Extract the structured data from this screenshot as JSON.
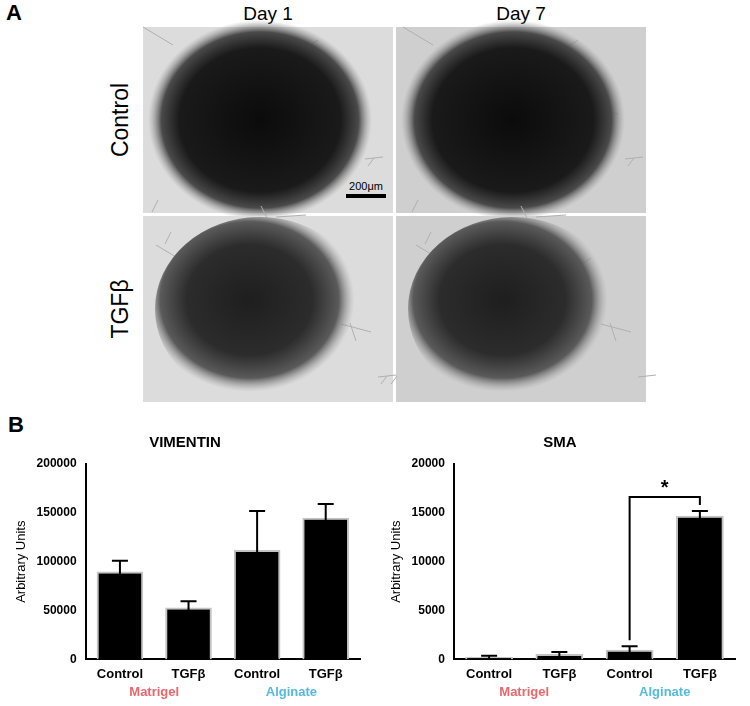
{
  "panel_a": {
    "label": "A",
    "columns": [
      "Day 1",
      "Day 7"
    ],
    "rows": [
      "Control",
      "TGFβ"
    ],
    "scale_bar": "200μm"
  },
  "panel_b_label": "B",
  "chart_data": [
    {
      "type": "bar",
      "title": "VIMENTIN",
      "y_label": "Arbitrary Units",
      "categories": [
        "Control",
        "TGFβ",
        "Control",
        "TGFβ"
      ],
      "values": [
        90000,
        53000,
        112000,
        145000
      ],
      "errors": [
        11000,
        6500,
        40000,
        14000
      ],
      "color": "#000000",
      "ylim": [
        0,
        200000
      ],
      "yticks": [
        0,
        50000,
        100000,
        150000,
        200000
      ],
      "grid": false,
      "groups": [
        {
          "name": "Matrigel",
          "color": "#e8676c",
          "count": 2
        },
        {
          "name": "Alginate",
          "color": "#56b9e0",
          "count": 2
        }
      ]
    },
    {
      "type": "bar",
      "title": "SMA",
      "y_label": "Arbitrary Units",
      "categories": [
        "Control",
        "TGFβ",
        "Control",
        "TGFβ"
      ],
      "values": [
        250,
        550,
        1000,
        14700
      ],
      "errors": [
        120,
        200,
        350,
        500
      ],
      "color": "#000000",
      "ylim": [
        0,
        20000
      ],
      "yticks": [
        0,
        5000,
        10000,
        15000,
        20000
      ],
      "grid": false,
      "groups": [
        {
          "name": "Matrigel",
          "color": "#e8676c",
          "count": 2
        },
        {
          "name": "Alginate",
          "color": "#56b9e0",
          "count": 2
        }
      ],
      "annotations": [
        {
          "text": "*",
          "from": 2,
          "to": 3
        }
      ]
    }
  ]
}
